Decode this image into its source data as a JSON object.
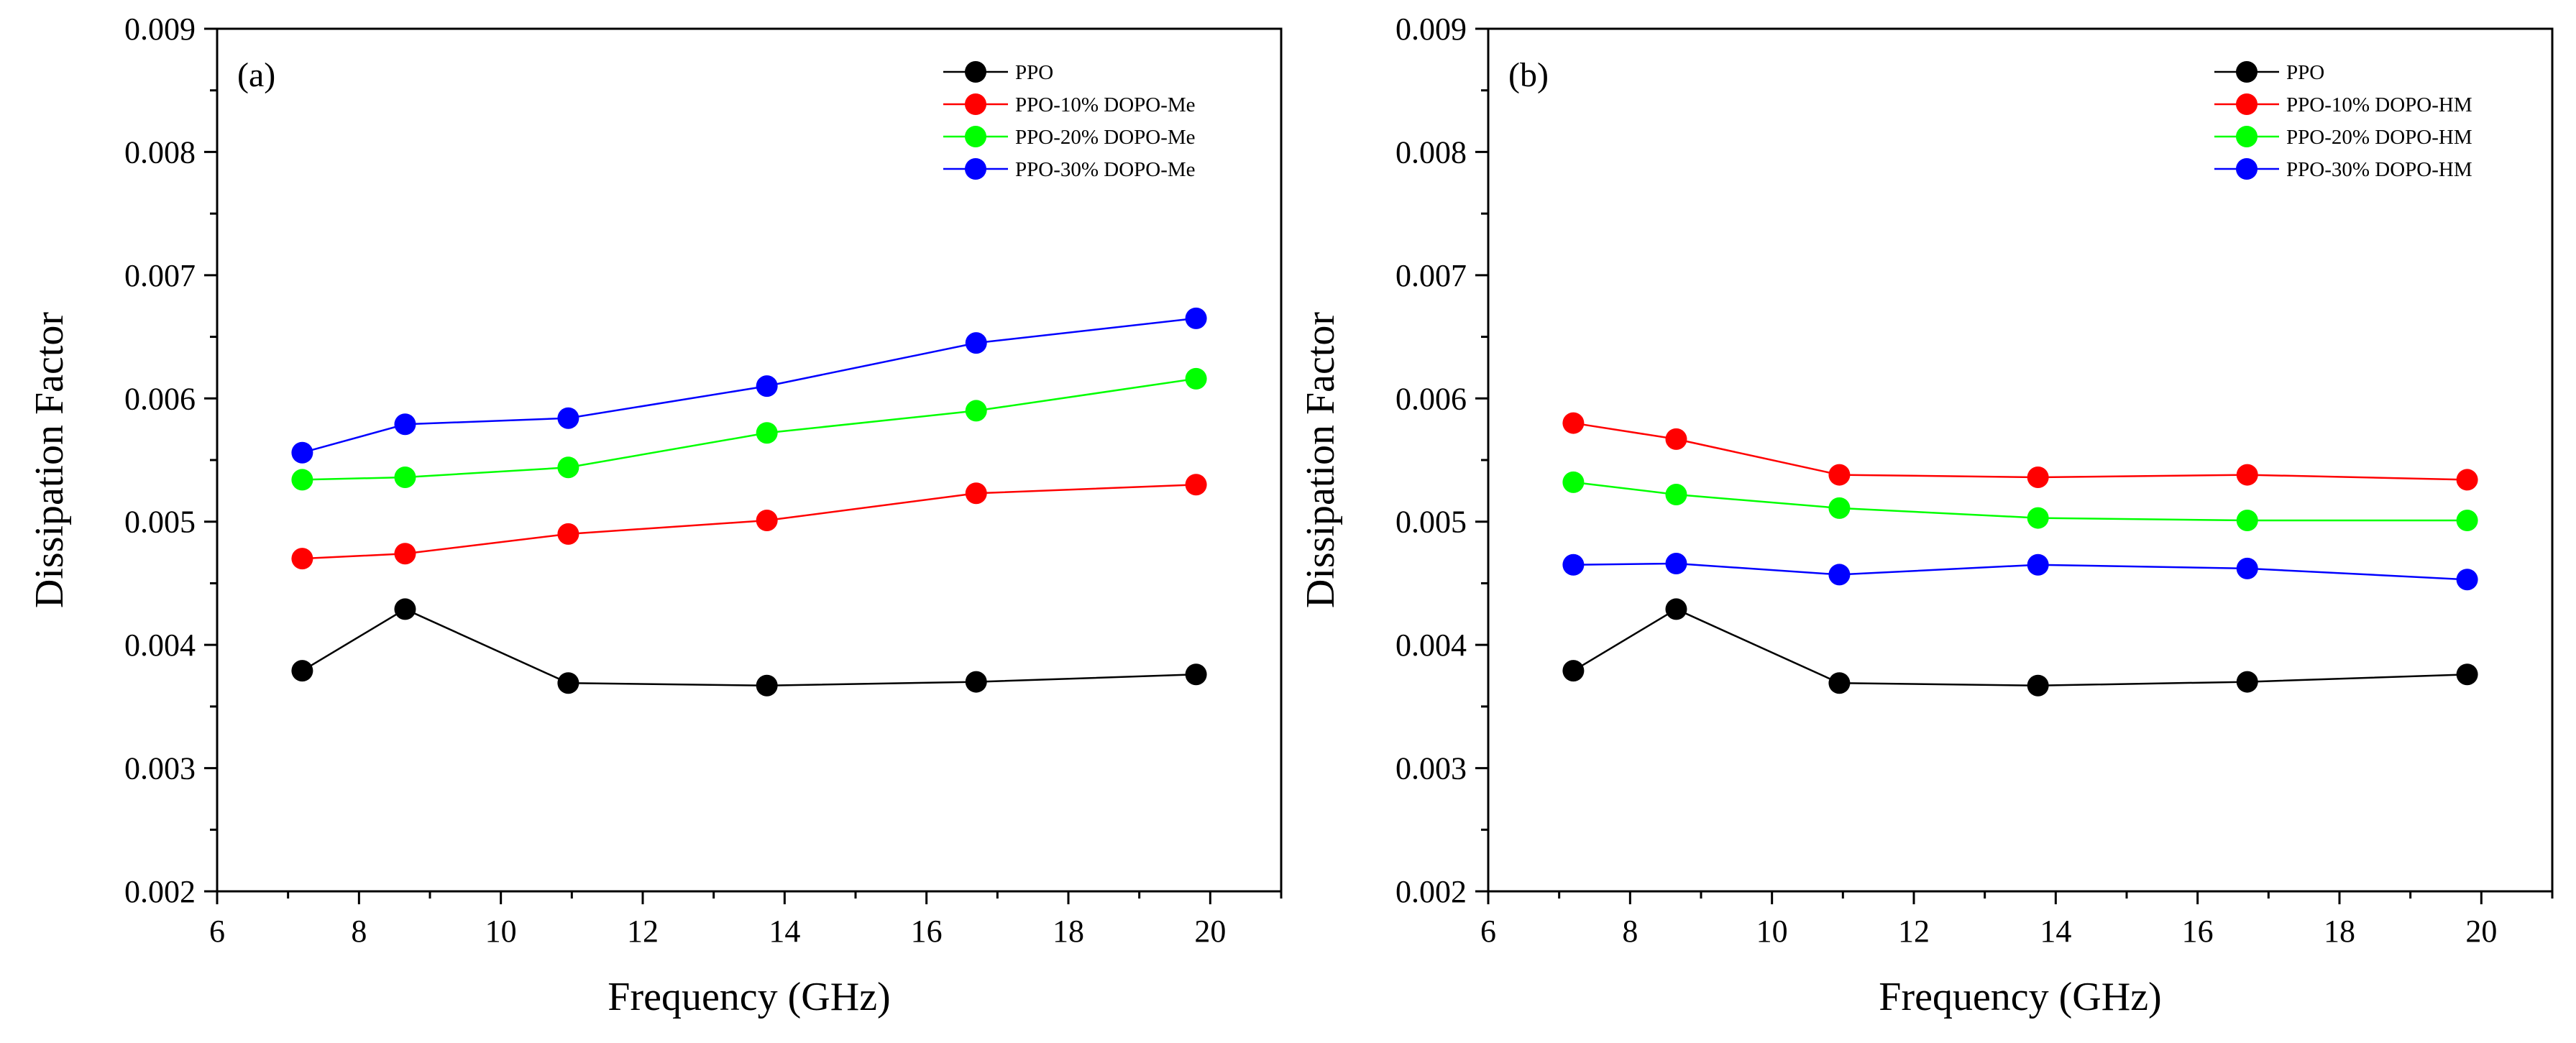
{
  "chart_data": [
    {
      "type": "line",
      "panel_label": "(a)",
      "xlabel": "Frequency (GHz)",
      "ylabel": "Dissipation Factor",
      "xlim": [
        6,
        21
      ],
      "ylim": [
        0.002,
        0.009
      ],
      "x_ticks": [
        6,
        8,
        10,
        12,
        14,
        16,
        18,
        20
      ],
      "y_ticks": [
        0.002,
        0.003,
        0.004,
        0.005,
        0.006,
        0.007,
        0.008,
        0.009
      ],
      "legend_position": "top-right",
      "x": [
        7.2,
        8.65,
        10.95,
        13.75,
        16.7,
        19.8
      ],
      "series": [
        {
          "name": "PPO",
          "color": "#000000",
          "values": [
            0.00379,
            0.00429,
            0.00369,
            0.00367,
            0.0037,
            0.00376
          ]
        },
        {
          "name": "PPO-10% DOPO-Me",
          "color": "#ff0000",
          "values": [
            0.0047,
            0.00474,
            0.0049,
            0.00501,
            0.00523,
            0.0053
          ]
        },
        {
          "name": "PPO-20% DOPO-Me",
          "color": "#00ff00",
          "values": [
            0.00534,
            0.00536,
            0.00544,
            0.00572,
            0.0059,
            0.00616
          ]
        },
        {
          "name": "PPO-30% DOPO-Me",
          "color": "#0000ff",
          "values": [
            0.00556,
            0.00579,
            0.00584,
            0.0061,
            0.00645,
            0.00665
          ]
        }
      ]
    },
    {
      "type": "line",
      "panel_label": "(b)",
      "xlabel": "Frequency (GHz)",
      "ylabel": "Dissipation Factor",
      "xlim": [
        6,
        21
      ],
      "ylim": [
        0.002,
        0.009
      ],
      "x_ticks": [
        6,
        8,
        10,
        12,
        14,
        16,
        18,
        20
      ],
      "y_ticks": [
        0.002,
        0.003,
        0.004,
        0.005,
        0.006,
        0.007,
        0.008,
        0.009
      ],
      "legend_position": "top-right",
      "x": [
        7.2,
        8.65,
        10.95,
        13.75,
        16.7,
        19.8
      ],
      "series": [
        {
          "name": "PPO",
          "color": "#000000",
          "values": [
            0.00379,
            0.00429,
            0.00369,
            0.00367,
            0.0037,
            0.00376
          ]
        },
        {
          "name": "PPO-10% DOPO-HM",
          "color": "#ff0000",
          "values": [
            0.0058,
            0.00567,
            0.00538,
            0.00536,
            0.00538,
            0.00534
          ]
        },
        {
          "name": "PPO-20% DOPO-HM",
          "color": "#00ff00",
          "values": [
            0.00532,
            0.00522,
            0.00511,
            0.00503,
            0.00501,
            0.00501
          ]
        },
        {
          "name": "PPO-30% DOPO-HM",
          "color": "#0000ff",
          "values": [
            0.00465,
            0.00466,
            0.00457,
            0.00465,
            0.00462,
            0.00453
          ]
        }
      ]
    }
  ]
}
